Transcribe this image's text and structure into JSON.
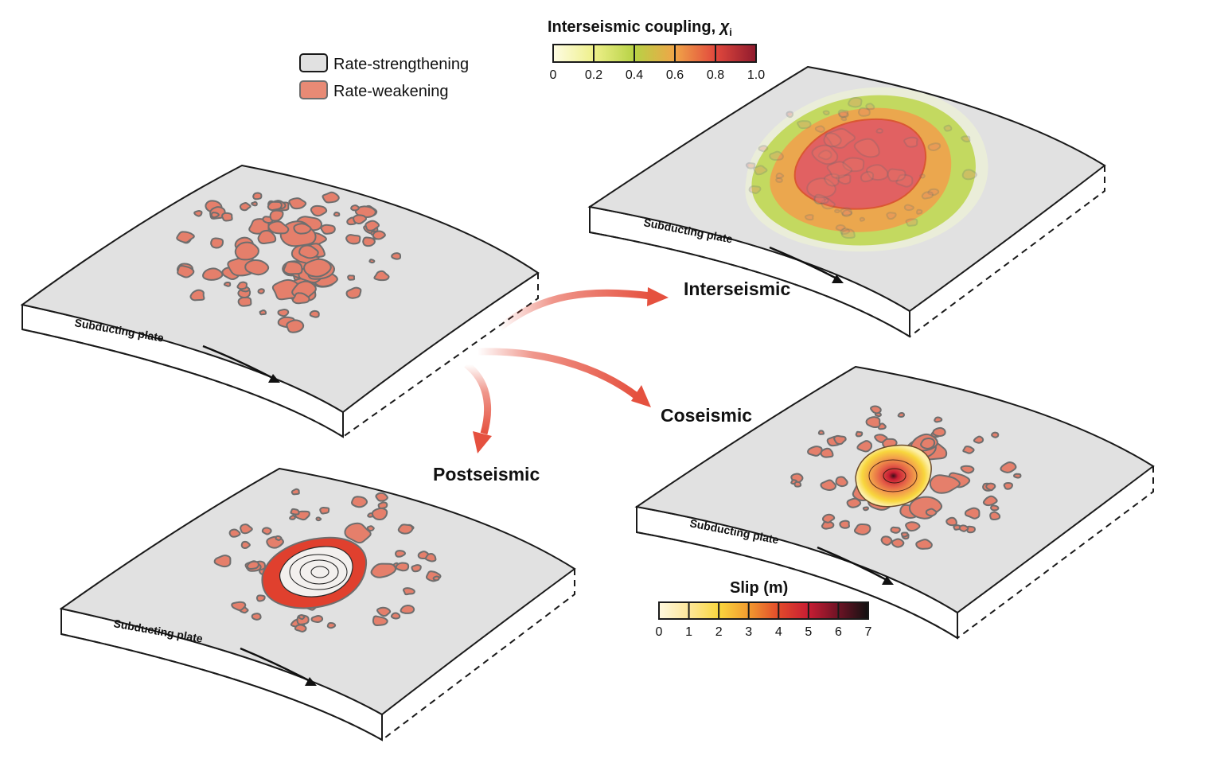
{
  "legend": {
    "rate_strengthening": "Rate-strengthening",
    "rate_weakening": "Rate-weakening",
    "colors": {
      "rate_strengthening": "#e1e1e1",
      "rate_weakening": "#e57f6b"
    }
  },
  "coupling_colorbar": {
    "title": "Interseismic coupling, ",
    "symbol": "χ",
    "subscript": "i",
    "ticks": [
      "0",
      "0.2",
      "0.4",
      "0.6",
      "0.8",
      "1.0"
    ],
    "colors": [
      "#fefce4",
      "#eef08a",
      "#b7d245",
      "#f0a548",
      "#e2483d",
      "#8f1a2d"
    ]
  },
  "slip_colorbar": {
    "title": "Slip (m)",
    "ticks": [
      "0",
      "1",
      "2",
      "3",
      "4",
      "5",
      "6",
      "7"
    ],
    "colors": [
      "#fff8de",
      "#fde79a",
      "#f9d73e",
      "#f29a2f",
      "#e24a2b",
      "#c81d33",
      "#6e1325",
      "#111111"
    ]
  },
  "panels": {
    "initial": {
      "plate_label": "Subducting plate"
    },
    "interseismic": {
      "title": "Interseismic",
      "plate_label": "Subducting plate"
    },
    "coseismic": {
      "title": "Coseismic",
      "plate_label": "Subducting plate"
    },
    "postseismic": {
      "title": "Postseismic",
      "plate_label": "Subducting plate"
    }
  },
  "arrow_color": "#e5513f"
}
